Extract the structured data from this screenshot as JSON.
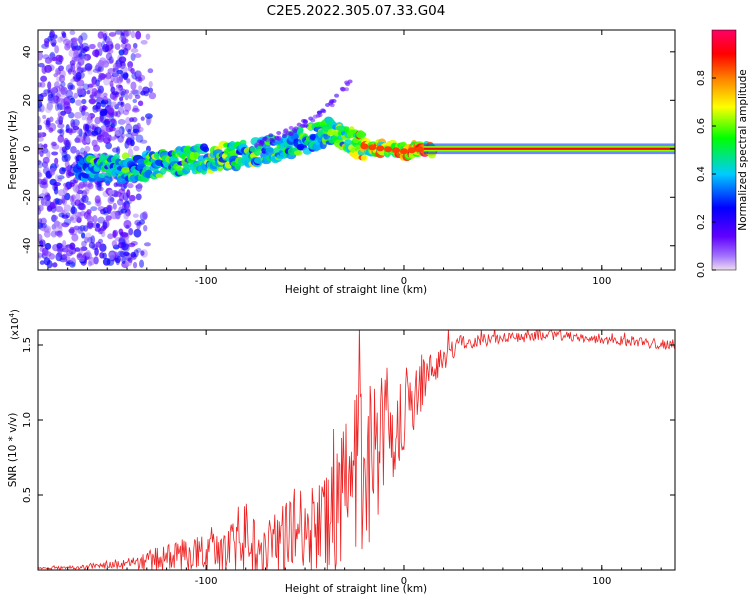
{
  "title": "C2E5.2022.305.07.33.G04",
  "chart_data": [
    {
      "type": "heatmap",
      "title": "C2E5.2022.305.07.33.G04",
      "xlabel": "Height of straight line (km)",
      "ylabel": "Frequency (Hz)",
      "xlim": [
        -185,
        137
      ],
      "ylim": [
        -50,
        49
      ],
      "xticks": [
        -100,
        0,
        100
      ],
      "yticks": [
        -40,
        -20,
        0,
        20,
        40
      ],
      "xtick_labels": [
        "-100",
        "0",
        "100"
      ],
      "ytick_labels": [
        "-40",
        "-20",
        "0",
        "20",
        "40"
      ],
      "colorbar": {
        "label": "Normalized spectral amplitude",
        "range": [
          0,
          1
        ],
        "ticks": [
          "0.0",
          "0.2",
          "0.4",
          "0.6",
          "0.8"
        ],
        "tick_values": [
          0,
          0.2,
          0.4,
          0.6,
          0.8
        ],
        "colors": [
          "#eeddee",
          "#7f00ff",
          "#0000ff",
          "#00ccff",
          "#00ff00",
          "#ffff00",
          "#ff7f00",
          "#ff0000",
          "#ff0066"
        ]
      },
      "ridge": [
        {
          "x": -160,
          "y": -8,
          "amp": 0.45
        },
        {
          "x": -140,
          "y": -8,
          "amp": 0.5
        },
        {
          "x": -120,
          "y": -6,
          "amp": 0.55
        },
        {
          "x": -100,
          "y": -4,
          "amp": 0.5
        },
        {
          "x": -80,
          "y": -2,
          "amp": 0.5
        },
        {
          "x": -60,
          "y": 1,
          "amp": 0.5
        },
        {
          "x": -45,
          "y": 5,
          "amp": 0.55
        },
        {
          "x": -38,
          "y": 7,
          "amp": 0.55
        },
        {
          "x": -30,
          "y": 4,
          "amp": 0.6
        },
        {
          "x": -20,
          "y": 1,
          "amp": 0.7
        },
        {
          "x": -10,
          "y": 0,
          "amp": 0.75
        },
        {
          "x": 0,
          "y": -1,
          "amp": 0.8
        },
        {
          "x": 10,
          "y": 0,
          "amp": 0.85
        },
        {
          "x": 137,
          "y": 0,
          "amp": 0.85
        }
      ],
      "scatter_band": {
        "x_from": -185,
        "x_to": -125,
        "y_from": -48,
        "y_to": 48
      },
      "arc": [
        {
          "x": -75,
          "y": 2
        },
        {
          "x": -55,
          "y": 8
        },
        {
          "x": -45,
          "y": 13
        },
        {
          "x": -35,
          "y": 20
        },
        {
          "x": -27,
          "y": 28
        }
      ]
    },
    {
      "type": "line",
      "title": "",
      "xlabel": "Height of straight line (km)",
      "ylabel": "SNR (10 * v/v)",
      "multiplier": "(x10",
      "multiplier_exp": "4",
      "multiplier_close": ")",
      "xlim": [
        -185,
        137
      ],
      "ylim": [
        0,
        1.6
      ],
      "xticks": [
        -100,
        0,
        100
      ],
      "yticks": [
        0.5,
        1.0,
        1.5
      ],
      "xtick_labels": [
        "-100",
        "0",
        "100"
      ],
      "ytick_labels": [
        "0.5",
        "1.0",
        "1.5"
      ],
      "color": "#ee2222",
      "envelope": [
        {
          "x": -185,
          "base": 0.01,
          "spike": 0.01
        },
        {
          "x": -160,
          "base": 0.02,
          "spike": 0.02
        },
        {
          "x": -140,
          "base": 0.04,
          "spike": 0.05
        },
        {
          "x": -125,
          "base": 0.07,
          "spike": 0.12
        },
        {
          "x": -110,
          "base": 0.1,
          "spike": 0.16
        },
        {
          "x": -95,
          "base": 0.12,
          "spike": 0.2
        },
        {
          "x": -80,
          "base": 0.16,
          "spike": 0.3
        },
        {
          "x": -65,
          "base": 0.2,
          "spike": 0.34
        },
        {
          "x": -50,
          "base": 0.24,
          "spike": 0.4
        },
        {
          "x": -40,
          "base": 0.3,
          "spike": 0.45
        },
        {
          "x": -30,
          "base": 0.45,
          "spike": 0.75
        },
        {
          "x": -25,
          "base": 0.6,
          "spike": 0.85
        },
        {
          "x": -20,
          "base": 0.7,
          "spike": 0.9
        },
        {
          "x": -15,
          "base": 0.8,
          "spike": 0.75
        },
        {
          "x": -10,
          "base": 0.9,
          "spike": 0.6
        },
        {
          "x": 0,
          "base": 1.05,
          "spike": 0.4
        },
        {
          "x": 10,
          "base": 1.25,
          "spike": 0.25
        },
        {
          "x": 20,
          "base": 1.43,
          "spike": 0.15
        },
        {
          "x": 30,
          "base": 1.52,
          "spike": 0.08
        },
        {
          "x": 50,
          "base": 1.55,
          "spike": 0.05
        },
        {
          "x": 80,
          "base": 1.56,
          "spike": 0.05
        },
        {
          "x": 110,
          "base": 1.53,
          "spike": 0.05
        },
        {
          "x": 137,
          "base": 1.5,
          "spike": 0.05
        }
      ]
    }
  ]
}
